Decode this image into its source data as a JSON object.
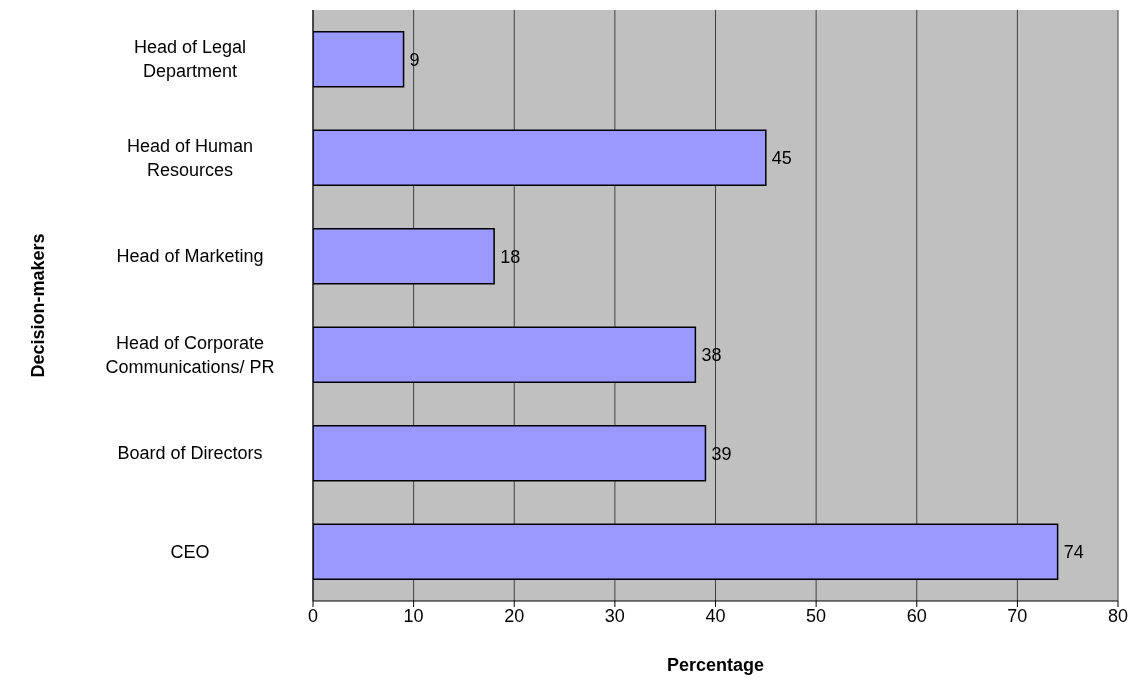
{
  "chart_data": {
    "type": "bar",
    "orientation": "horizontal",
    "xlabel": "Percentage",
    "ylabel": "Decision-makers",
    "categories": [
      "Head of Legal Department",
      "Head of Human Resources",
      "Head of Marketing",
      "Head of Corporate Communications/ PR",
      "Board of Directors",
      "CEO"
    ],
    "values": [
      9,
      45,
      18,
      38,
      39,
      74
    ],
    "color": "#9999ff",
    "xlim": [
      0,
      80
    ],
    "xticks": [
      0,
      10,
      20,
      30,
      40,
      50,
      60,
      70,
      80
    ],
    "grid": "x",
    "data_labels": true
  }
}
